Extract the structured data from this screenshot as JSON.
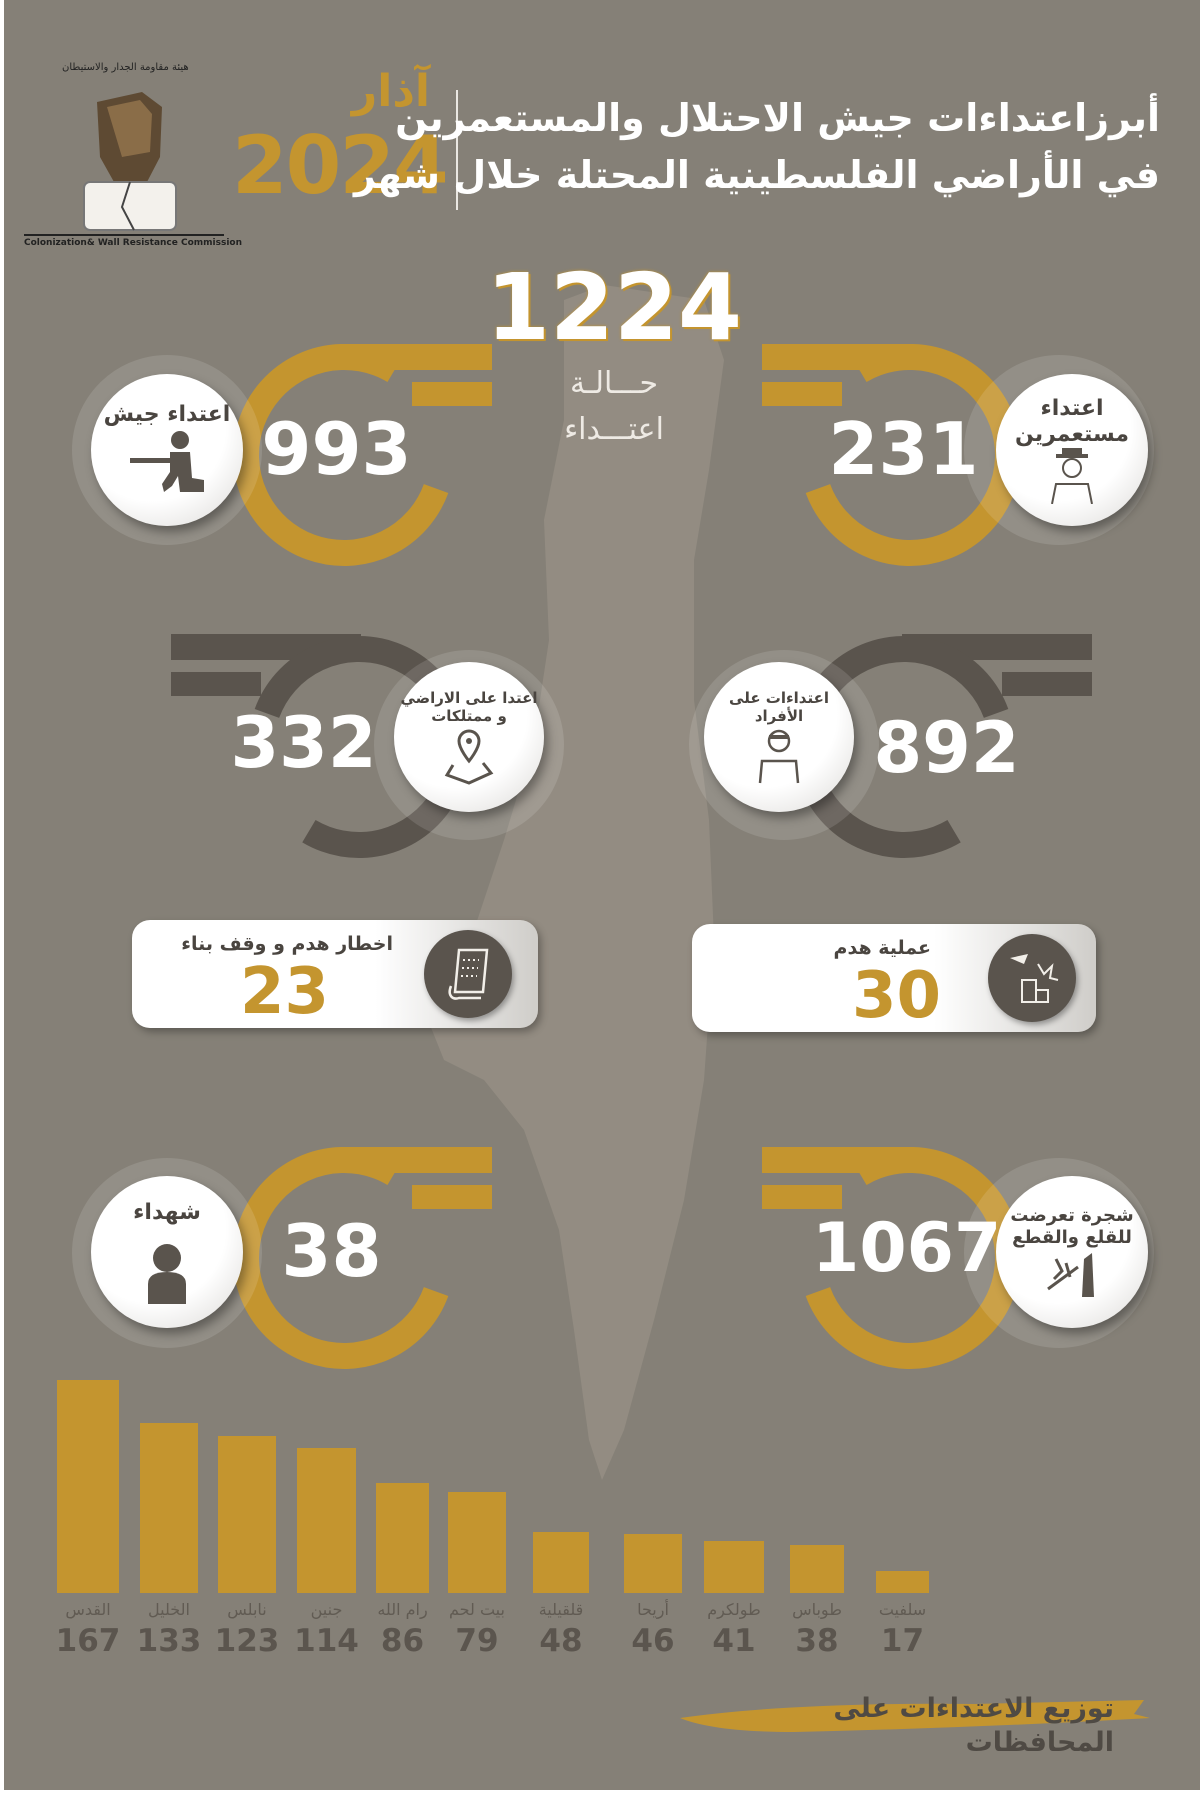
{
  "header": {
    "org_name_ar": "هيئة مقاومة الجدار والاستيطان",
    "org_name_en": "Colonization& Wall Resistance Commission",
    "month": "آذار",
    "year": "2024",
    "title_line1": "أبرزاعتداءات جيش الاحتلال والمستعمرين",
    "title_line2": "في الأراضي الفلسطينية المحتلة خلال شهر"
  },
  "total": {
    "value": "1224",
    "label1": "حـــالـة",
    "label2": "اعتـــداء"
  },
  "stats": {
    "army": {
      "label": "اعتداء جيش",
      "value": "993",
      "icon": "soldier-icon"
    },
    "settlers": {
      "label1": "اعتداء",
      "label2": "مستعمرين",
      "value": "231",
      "icon": "settler-icon"
    },
    "land": {
      "label1": "اعتدا على الاراضي",
      "label2": "و ممتلكات",
      "value": "332",
      "icon": "map-pin-icon"
    },
    "individuals": {
      "label1": "اعتداءات على",
      "label2": "الأفراد",
      "value": "892",
      "icon": "injured-person-icon"
    },
    "notices": {
      "label": "اخطار  هدم و وقف بناء",
      "value": "23",
      "icon": "document-icon"
    },
    "demolitions": {
      "label": "عملية  هدم",
      "value": "30",
      "icon": "demolition-icon"
    },
    "martyrs": {
      "label": "شهداء",
      "value": "38",
      "icon": "person-icon"
    },
    "trees": {
      "label1": "شجرة تعرضت",
      "label2": "للقلع والقطع",
      "value": "1067",
      "icon": "tree-cut-icon"
    }
  },
  "colors": {
    "background": "#858077",
    "gold": "#c4952f",
    "dark_ring": "#5a544d",
    "map": "#938c82"
  },
  "chart_data": {
    "type": "bar",
    "title": "توزيع الاعتداءات على المحافظات",
    "categories": [
      "القدس",
      "الخليل",
      "نابلس",
      "جنين",
      "رام الله",
      "بيت لحم",
      "قلقيلية",
      "أريحا",
      "طولكرم",
      "طوباس",
      "سلفيت"
    ],
    "values": [
      167,
      133,
      123,
      114,
      86,
      79,
      48,
      46,
      41,
      38,
      17
    ],
    "color": "#c4952f",
    "grid": false,
    "legend": "none"
  }
}
